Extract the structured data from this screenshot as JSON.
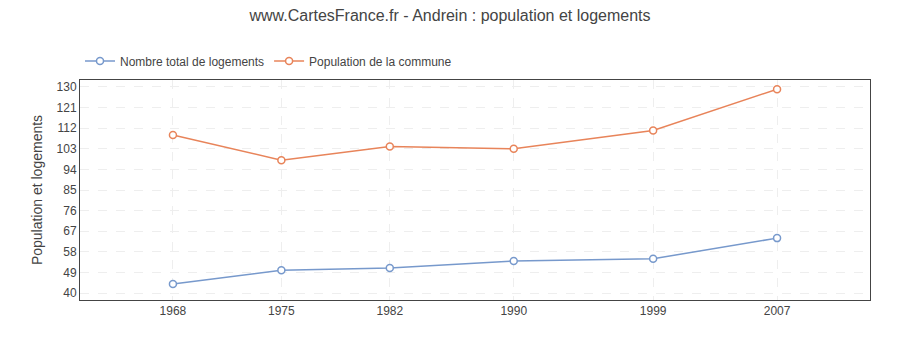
{
  "chart_data": {
    "type": "line",
    "title": "www.CartesFrance.fr - Andrein : population et logements",
    "ylabel": "Population et logements",
    "x": [
      1968,
      1975,
      1982,
      1990,
      1999,
      2007
    ],
    "series": [
      {
        "name": "Nombre total de logements",
        "color": "#7799cc",
        "marker": "circle",
        "values": [
          44,
          50,
          51,
          54,
          55,
          64
        ]
      },
      {
        "name": "Population de la commune",
        "color": "#e8845a",
        "marker": "circle",
        "values": [
          109,
          98,
          104,
          103,
          111,
          129
        ]
      }
    ],
    "xlim": [
      1962,
      2013
    ],
    "xticks": [
      1968,
      1975,
      1982,
      1990,
      1999,
      2007
    ],
    "ylim": [
      37,
      133
    ],
    "yticks": [
      40,
      49,
      58,
      67,
      76,
      85,
      94,
      103,
      112,
      121,
      130
    ],
    "grid": true,
    "legend": "top left"
  }
}
